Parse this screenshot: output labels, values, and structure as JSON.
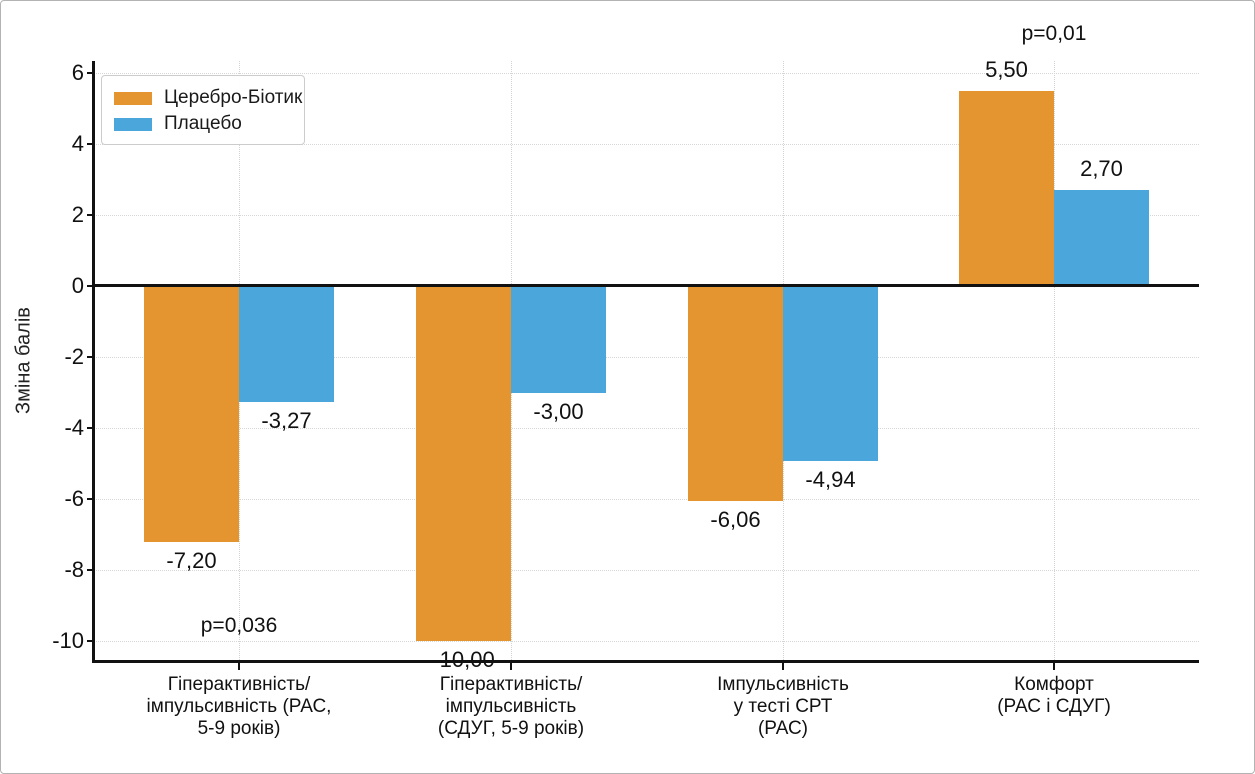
{
  "chart_data": {
    "type": "bar",
    "title": "",
    "xlabel": "",
    "ylabel": "Зміна балів",
    "categories": [
      "Гіперактивність/\nімпульсивність (РАС,\n5-9 років)",
      "Гіперактивність/\nімпульсивність\n(СДУГ, 5-9 років)",
      "Імпульсивність\nу тесті СРТ\n(РАС)",
      "Комфорт\n(РАС і СДУГ)"
    ],
    "series": [
      {
        "name": "Церебро-Біотик",
        "color": "#E5952F",
        "values": [
          -7.2,
          -10.0,
          -6.06,
          5.5
        ],
        "labels": [
          "-7,20",
          "-10,00",
          "-6,06",
          "5,50"
        ]
      },
      {
        "name": "Плацебо",
        "color": "#4BA7DB",
        "values": [
          -3.27,
          -3.0,
          -4.94,
          2.7
        ],
        "labels": [
          "-3,27",
          "-3,00",
          "-4,94",
          "2,70"
        ]
      }
    ],
    "annotations": [
      {
        "text": "p=0,036",
        "group": 0,
        "y": -9.58
      },
      {
        "text": "p=0,01",
        "group": 3,
        "y": 7.1
      }
    ],
    "yticks": [
      6,
      4,
      2,
      0,
      -2,
      -4,
      -6,
      -8,
      -10
    ],
    "ytick_labels": [
      "6",
      "4",
      "2",
      "0",
      "-2",
      "-4",
      "-6",
      "-8",
      "-10"
    ],
    "ylim": [
      -10.7,
      6.35
    ],
    "grid": true,
    "legend_position": "upper-left",
    "zero_line_color": "#111111",
    "grid_color": "#d7d7d7"
  }
}
